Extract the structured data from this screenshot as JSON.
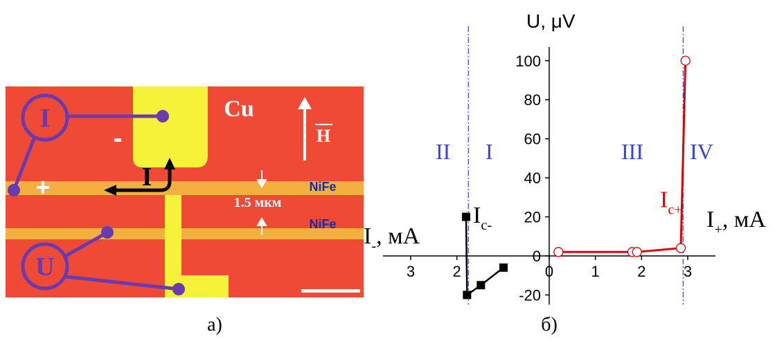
{
  "panel_a": {
    "label": "а)",
    "probe_current": "I",
    "probe_voltage": "U",
    "minus": "-",
    "plus": "+",
    "material_top": "Cu",
    "field": "H",
    "current": "I",
    "gap": "1.5 мкм",
    "strip_1": "NiFe",
    "strip_2": "NiFe"
  },
  "chart_data": {
    "type": "line",
    "label": "б)",
    "y_axis_label": "U, μV",
    "x_axis_label_left": {
      "main": "I",
      "sub": "-",
      "unit": ", мА"
    },
    "x_axis_label_right": {
      "main": "I",
      "sub": "+",
      "unit": ", мА"
    },
    "xlim": [
      -3.6,
      3.6
    ],
    "xticks": [
      {
        "value": -3,
        "label": "3"
      },
      {
        "value": -2,
        "label": "2"
      },
      0,
      1,
      2,
      3
    ],
    "ylim": [
      -25,
      107
    ],
    "yticks": [
      -20,
      0,
      20,
      40,
      60,
      80,
      100
    ],
    "series": [
      {
        "color": "#e00000",
        "marker": "open-circle",
        "x": [
          0.2,
          1.8,
          1.9,
          2.85,
          2.95
        ],
        "values": [
          2,
          2,
          2,
          4,
          100
        ]
      },
      {
        "color": "#000000",
        "marker": "square",
        "x": [
          -1.8,
          -1.78,
          -1.48,
          -0.99
        ],
        "values": [
          20,
          -20,
          -15,
          -6
        ]
      }
    ],
    "boundaries": {
      "color": "#3344dd",
      "x": [
        -1.75,
        2.9
      ]
    },
    "regions": [
      {
        "text": "II",
        "x": -2.3
      },
      {
        "text": "I",
        "x": -1.3
      },
      {
        "text": "III",
        "x": 1.8
      },
      {
        "text": "IV",
        "x": 3.3
      }
    ],
    "annotations": [
      {
        "main": "I",
        "sub": "c-",
        "color": "#000000",
        "x": -1.65,
        "y": 17
      },
      {
        "main": "I",
        "sub": "c+",
        "color": "#e00000",
        "x": 2.4,
        "y": 25
      }
    ]
  }
}
